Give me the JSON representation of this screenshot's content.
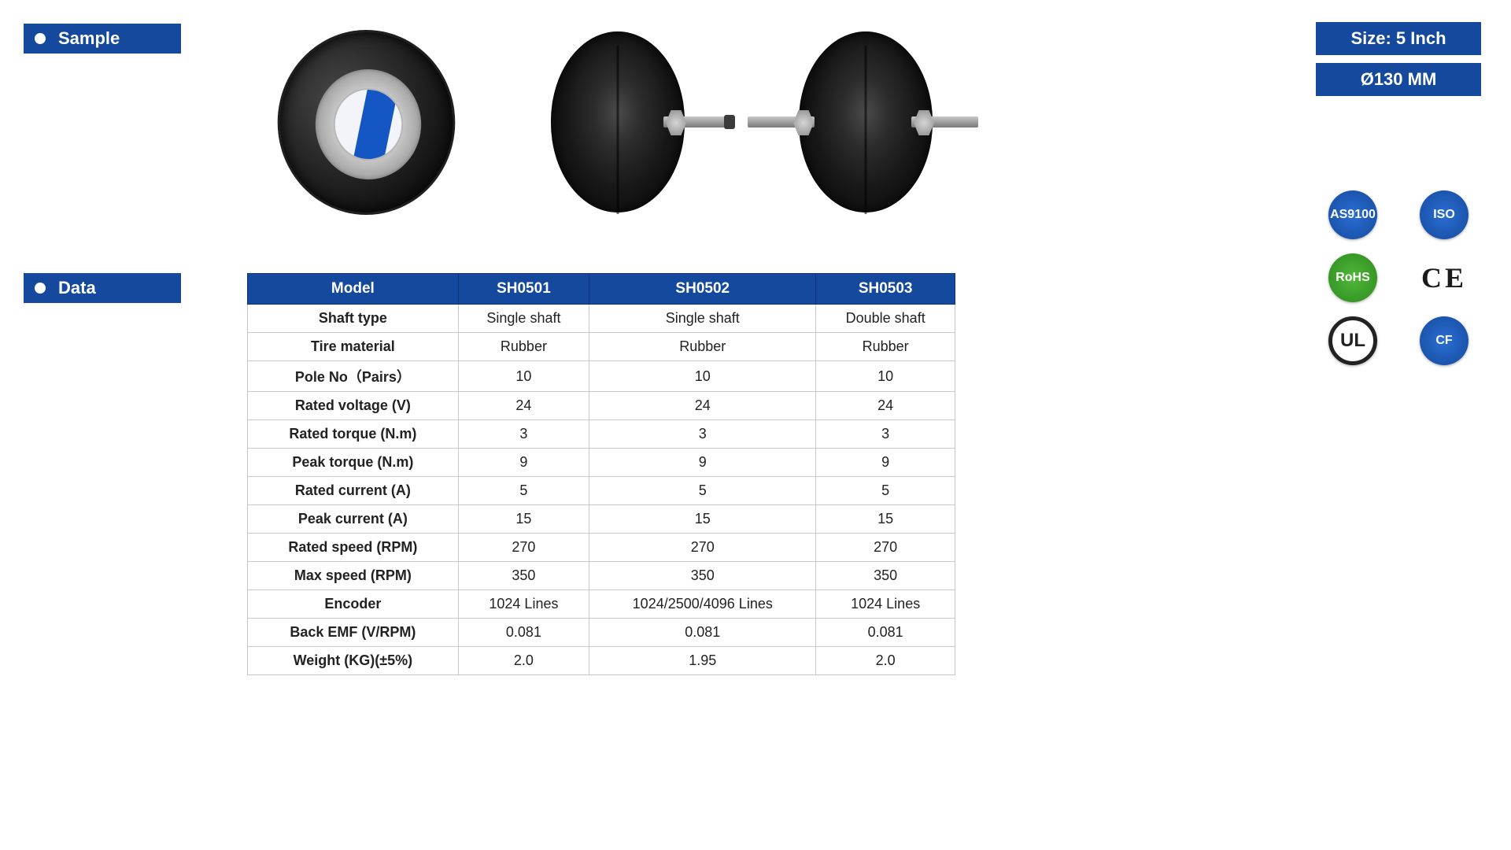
{
  "sections": {
    "sample": "Sample",
    "data": "Data"
  },
  "size_label": "Size:  5  Inch",
  "diameter_label": "Ø130 MM",
  "certs": [
    "AS9100",
    "ISO",
    "RoHS",
    "CE",
    "UL",
    "CF"
  ],
  "table": {
    "header_color": "#14499e",
    "border_color": "#c9c9c9",
    "columns": [
      "Model",
      "SH0501",
      "SH0502",
      "SH0503"
    ],
    "rows": [
      [
        "Shaft type",
        "Single shaft",
        "Single shaft",
        "Double shaft"
      ],
      [
        "Tire material",
        "Rubber",
        "Rubber",
        "Rubber"
      ],
      [
        "Pole No（Pairs）",
        "10",
        "10",
        "10"
      ],
      [
        "Rated voltage (V)",
        "24",
        "24",
        "24"
      ],
      [
        "Rated torque (N.m)",
        "3",
        "3",
        "3"
      ],
      [
        "Peak torque (N.m)",
        "9",
        "9",
        "9"
      ],
      [
        "Rated current (A)",
        "5",
        "5",
        "5"
      ],
      [
        "Peak current (A)",
        "15",
        "15",
        "15"
      ],
      [
        "Rated speed (RPM)",
        "270",
        "270",
        "270"
      ],
      [
        "Max speed (RPM)",
        "350",
        "350",
        "350"
      ],
      [
        "Encoder",
        "1024 Lines",
        "1024/2500/4096 Lines",
        "1024 Lines"
      ],
      [
        "Back EMF (V/RPM)",
        "0.081",
        "0.081",
        "0.081"
      ],
      [
        "Weight (KG)(±5%)",
        "2.0",
        "1.95",
        "2.0"
      ]
    ]
  },
  "colors": {
    "brand_blue": "#14499e",
    "text": "#222222",
    "background": "#ffffff"
  }
}
